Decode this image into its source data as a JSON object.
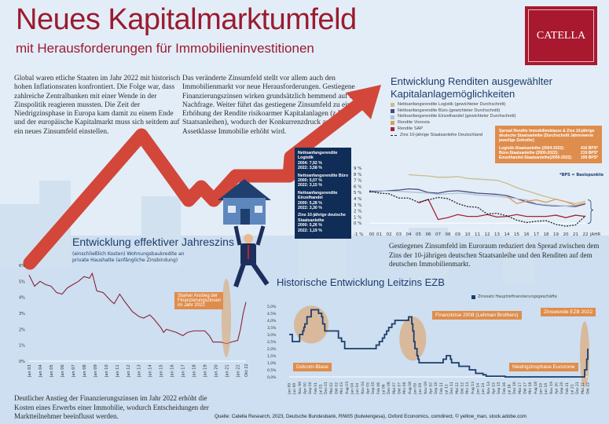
{
  "header": {
    "title": "Neues Kapitalmarktumfeld",
    "subtitle": "mit Herausforderungen für Immobilieninvestitionen",
    "logo_text": "CATELLA"
  },
  "colors": {
    "brand_red": "#9b1b30",
    "navy": "#1d3d6b",
    "orange": "#df8d4c",
    "arrow": "#d2473a"
  },
  "intro": {
    "left": "Global waren etliche Staaten im Jahr 2022 mit historisch hohen Inflationsraten konfrontiert. Die Folge war, dass zahlreiche Zentralbanken mit einer Wende in der Zinspolitik reagieren mussten. Die Zeit der Niedrigzinsphase in Europa kam damit zu einem Ende und der europäische Kapitalmarkt muss sich seitdem auf ein neues Zinsumfeld einstellen.",
    "right": "Das veränderte Zinsumfeld stellt vor allem auch den Immobilienmarkt vor neue Herausforderungen. Gestiegene Finanzierungszinsen wirken grundsätzlich hemmend auf die Nachfrage. Weiter führt das gestiegene Zinsumfeld zu einer Erhöhung der Rendite risikoarmer Kapitalanlagen (z.B. Staatsanleihen), wodurch der Konkurrenzdruck auf die Assetklasse Immobilie erhöht wird."
  },
  "navy_box": [
    {
      "label": "Nettoanfangsrendite Logistik",
      "v1": "2004: 7,92 %",
      "v2": "2022: 3,58 %"
    },
    {
      "label": "Nettoanfangsrendite Büro",
      "v1": "2000: 5,07 %",
      "v2": "2022: 3,15 %"
    },
    {
      "label": "Nettoanfangsrendite Einzelhandel",
      "v1": "2000: 5,28 %",
      "v2": "2022: 3,30 %"
    },
    {
      "label": "Zins 10-jährige deutsche Staatsanleihe",
      "v1": "2000: 5,26 %",
      "v2": "2022: 1,19 %"
    }
  ],
  "spread_box": {
    "title": "Spread Rendite Immobilienklasse & Zins 10-jährige deutsche Staatsanleihe (Durchschnitt Jahreswerte jeweilige Zeitreihe)",
    "rows": [
      {
        "label": "Logistik-Staatsanleihe (2004-2022):",
        "value": "416 BPS*"
      },
      {
        "label": "Büro-Staatsanleihe (2000-2022):",
        "value": "219 BPS*"
      },
      {
        "label": "Einzelhandel-Staatsanleihe(2000-2022):",
        "value": "199 BPS*"
      }
    ],
    "footnote": "*BPS = Basispunkte"
  },
  "spread_text": "Gestiegenes Zinsumfeld im Euroraum reduziert den Spread zwischen dem Zins der 10-jährigen deutschen Staatsanleihe und den Renditen auf dem deutschen Immobilienmarkt.",
  "bottom_text": "Deutlicher Anstieg der Finanzierungszinsen im Jahr 2022 erhöht die Kosten eines Erwerbs einer Immobilie, wodurch Entscheidungen der Marktteilnehmer beeinflusst werden.",
  "source": "Quelle: Catella Research, 2023, Deutsche Bundesbank, RIWIS (bulwiengesa), Oxford Economics, comdirect, © yellow_man, stock.adobe.com",
  "chart_data": [
    {
      "type": "line",
      "title": "Entwicklung Renditen ausgewählter Kapitalanlagemöglichkeiten",
      "xlabel": "JAHR",
      "x": [
        "00",
        "01",
        "02",
        "03",
        "04",
        "05",
        "06",
        "07",
        "08",
        "09",
        "10",
        "11",
        "12",
        "13",
        "14",
        "15",
        "16",
        "17",
        "18",
        "19",
        "20",
        "21",
        "22"
      ],
      "yticks": [
        "-1 %",
        "0 %",
        "1 %",
        "2 %",
        "3 %",
        "4 %",
        "5 %",
        "6 %",
        "7 %",
        "8 %",
        "9 %"
      ],
      "ylim": [
        -1,
        9
      ],
      "legend": "top-left",
      "series": [
        {
          "name": "Nettoanfangsrendite Logistik (gewichteter Durchschnitt)",
          "color": "#c9bd8a",
          "style": "solid",
          "values": [
            null,
            null,
            null,
            null,
            7.92,
            7.8,
            7.7,
            7.5,
            7.5,
            7.6,
            7.3,
            7.2,
            7.1,
            7.0,
            6.5,
            5.8,
            5.3,
            4.8,
            4.3,
            3.9,
            3.5,
            3.2,
            3.58
          ]
        },
        {
          "name": "Nettoanfangsrendite Büro (gewichteter Durchschnitt)",
          "color": "#4b4a7e",
          "style": "solid",
          "values": [
            5.07,
            5.2,
            5.3,
            5.4,
            5.6,
            5.5,
            5.0,
            4.9,
            5.2,
            5.3,
            5.1,
            4.9,
            4.8,
            4.7,
            4.5,
            4.0,
            3.5,
            3.1,
            2.9,
            2.8,
            2.8,
            2.7,
            3.15
          ]
        },
        {
          "name": "Nettoanfangsrendite Einzelhandel (gewichteter Durchschnitt)",
          "color": "#a9c4d6",
          "style": "solid",
          "values": [
            5.28,
            5.3,
            5.2,
            5.2,
            5.1,
            5.0,
            4.9,
            4.7,
            4.8,
            4.9,
            4.8,
            4.6,
            4.5,
            4.4,
            4.2,
            4.0,
            3.8,
            3.2,
            3.0,
            2.9,
            2.8,
            2.9,
            3.3
          ]
        },
        {
          "name": "Rendite Vonovia",
          "color": "#df9a5e",
          "style": "solid",
          "values": [
            null,
            null,
            null,
            null,
            null,
            null,
            null,
            null,
            null,
            null,
            null,
            null,
            null,
            null,
            4.4,
            3.2,
            3.6,
            3.8,
            3.4,
            3.9,
            3.5,
            2.9,
            3.3
          ]
        },
        {
          "name": "Rendite SAP",
          "color": "#a3243a",
          "style": "solid",
          "values": [
            null,
            null,
            null,
            null,
            null,
            3.3,
            3.9,
            0.6,
            0.9,
            1.4,
            1.1,
            1.1,
            1.4,
            1.0,
            1.1,
            1.4,
            1.1,
            1.1,
            1.1,
            1.3,
            0.9,
            1.3,
            1.1
          ]
        },
        {
          "name": "Zins 10-jährige Staatsanleihe Deutschland",
          "color": "#222222",
          "style": "dashed",
          "values": [
            5.26,
            4.9,
            4.8,
            4.1,
            4.1,
            3.4,
            3.8,
            4.2,
            4.0,
            3.2,
            2.7,
            2.6,
            1.5,
            1.6,
            1.2,
            0.5,
            0.1,
            0.3,
            0.4,
            -0.2,
            -0.5,
            -0.3,
            1.19
          ]
        }
      ]
    },
    {
      "type": "line",
      "title": "Entwicklung effektiver Jahreszins",
      "subtitle": "(einschließlich Kosten) Wohnungsbaukredite an private Haushalte (anfängliche Zinsbindung)",
      "xticks": [
        "Jan 03",
        "Jan 04",
        "Jan 05",
        "Jan 06",
        "Jan 07",
        "Jan 08",
        "Jan 09",
        "Jan 10",
        "Jan 11",
        "Jan 12",
        "Jan 13",
        "Jan 14",
        "Jan 15",
        "Jan 16",
        "Jan 17",
        "Jan 18",
        "Jan 19",
        "Jan 20",
        "Jan 21",
        "Jan 22",
        "Okt 22"
      ],
      "yticks": [
        "0%",
        "1%",
        "2%",
        "3%",
        "4%",
        "5%",
        "6%"
      ],
      "ylim": [
        0,
        6
      ],
      "annotation": "Starker Anstieg der Finanzierungszinsen im Jahr 2022",
      "series": [
        {
          "color": "#8a2236",
          "points": [
            [
              "2003-01",
              5.4
            ],
            [
              "2003-07",
              4.7
            ],
            [
              "2004-01",
              5.0
            ],
            [
              "2004-07",
              4.8
            ],
            [
              "2005-01",
              4.7
            ],
            [
              "2005-07",
              4.3
            ],
            [
              "2006-01",
              4.2
            ],
            [
              "2006-07",
              4.6
            ],
            [
              "2007-01",
              4.8
            ],
            [
              "2007-07",
              5.0
            ],
            [
              "2008-01",
              5.3
            ],
            [
              "2008-07",
              5.2
            ],
            [
              "2008-10",
              5.5
            ],
            [
              "2009-03",
              4.4
            ],
            [
              "2009-10",
              4.3
            ],
            [
              "2010-06",
              3.8
            ],
            [
              "2010-10",
              3.6
            ],
            [
              "2011-04",
              4.2
            ],
            [
              "2011-10",
              3.7
            ],
            [
              "2012-06",
              3.1
            ],
            [
              "2013-01",
              2.8
            ],
            [
              "2013-06",
              2.7
            ],
            [
              "2014-01",
              2.9
            ],
            [
              "2014-06",
              2.6
            ],
            [
              "2015-01",
              2.1
            ],
            [
              "2015-04",
              1.8
            ],
            [
              "2015-07",
              2.0
            ],
            [
              "2016-06",
              1.8
            ],
            [
              "2017-01",
              1.6
            ],
            [
              "2017-06",
              1.8
            ],
            [
              "2018-01",
              1.9
            ],
            [
              "2019-01",
              1.9
            ],
            [
              "2019-06",
              1.6
            ],
            [
              "2019-10",
              1.2
            ],
            [
              "2020-06",
              1.2
            ],
            [
              "2021-01",
              1.1
            ],
            [
              "2021-06",
              1.2
            ],
            [
              "2022-01",
              1.3
            ],
            [
              "2022-04",
              2.0
            ],
            [
              "2022-07",
              3.0
            ],
            [
              "2022-10",
              3.7
            ]
          ]
        }
      ]
    },
    {
      "type": "line",
      "title": "Historische Entwicklung Leitzins EZB",
      "legend": "top-right",
      "yticks": [
        "0,0%",
        "0,5%",
        "1,0%",
        "1,5%",
        "2,0%",
        "2,5%",
        "3,0%",
        "3,5%",
        "4,0%",
        "4,5%",
        "5,0%"
      ],
      "ylim": [
        0,
        5
      ],
      "xticks": [
        "Jan 99",
        "Jun 99",
        "Nov 99",
        "Apr 00",
        "Sep 00",
        "Feb 01",
        "Jul 01",
        "Dez 01",
        "Mai 02",
        "Okt 02",
        "Mrz 03",
        "Aug 03",
        "Jan 04",
        "Jun 04",
        "Nov 04",
        "Apr 05",
        "Sep 05",
        "Feb 06",
        "Jul 06",
        "Dez 06",
        "Mai 07",
        "Okt 07",
        "Mrz 08",
        "Aug 08",
        "Jan 09",
        "Jun 09",
        "Nov 09",
        "Apr 10",
        "Sep 10",
        "Feb 11",
        "Jul 11",
        "Dez 11",
        "Mai 12",
        "Okt 12",
        "Mrz 13",
        "Aug 13",
        "Jan 14",
        "Jun 14",
        "Nov 14",
        "Apr 15",
        "Sep 15",
        "Feb 16",
        "Jul 16",
        "Dez 16",
        "Mai 17",
        "Okt 17",
        "Mrz 18",
        "Aug 18",
        "Jan 19",
        "Jun 19",
        "Nov 19",
        "Apr 20",
        "Sep 20",
        "Feb 21",
        "Jul 21",
        "Dez 21",
        "Mai 22",
        "Okt 22"
      ],
      "annotations": [
        "Dotcom-Blase",
        "Finanzkrise 2008 (Lehman Brothers)",
        "Niedrigzinsphase Eurozone",
        "Zinswende EZB 2022"
      ],
      "series": [
        {
          "name": "Zinssatz Hauptrefinanzierungsgeschäfte",
          "color": "#1d3d6b",
          "steps": [
            [
              "1999-01",
              3.0
            ],
            [
              "1999-04",
              2.5
            ],
            [
              "1999-11",
              3.0
            ],
            [
              "2000-02",
              3.25
            ],
            [
              "2000-03",
              3.5
            ],
            [
              "2000-04",
              3.75
            ],
            [
              "2000-06",
              4.25
            ],
            [
              "2000-10",
              4.75
            ],
            [
              "2001-05",
              4.5
            ],
            [
              "2001-08",
              4.25
            ],
            [
              "2001-09",
              3.75
            ],
            [
              "2001-11",
              3.25
            ],
            [
              "2002-12",
              2.75
            ],
            [
              "2003-03",
              2.5
            ],
            [
              "2003-06",
              2.0
            ],
            [
              "2005-12",
              2.25
            ],
            [
              "2006-03",
              2.5
            ],
            [
              "2006-06",
              2.75
            ],
            [
              "2006-08",
              3.0
            ],
            [
              "2006-10",
              3.25
            ],
            [
              "2006-12",
              3.5
            ],
            [
              "2007-03",
              3.75
            ],
            [
              "2007-06",
              4.0
            ],
            [
              "2008-07",
              4.25
            ],
            [
              "2008-10",
              3.75
            ],
            [
              "2008-11",
              3.25
            ],
            [
              "2008-12",
              2.5
            ],
            [
              "2009-01",
              2.0
            ],
            [
              "2009-03",
              1.5
            ],
            [
              "2009-04",
              1.25
            ],
            [
              "2009-05",
              1.0
            ],
            [
              "2011-04",
              1.25
            ],
            [
              "2011-07",
              1.5
            ],
            [
              "2011-11",
              1.25
            ],
            [
              "2011-12",
              1.0
            ],
            [
              "2012-07",
              0.75
            ],
            [
              "2013-05",
              0.5
            ],
            [
              "2013-11",
              0.25
            ],
            [
              "2014-06",
              0.15
            ],
            [
              "2014-09",
              0.05
            ],
            [
              "2016-03",
              0.0
            ],
            [
              "2022-07",
              0.5
            ],
            [
              "2022-09",
              1.25
            ],
            [
              "2022-10",
              2.0
            ]
          ]
        }
      ]
    }
  ]
}
